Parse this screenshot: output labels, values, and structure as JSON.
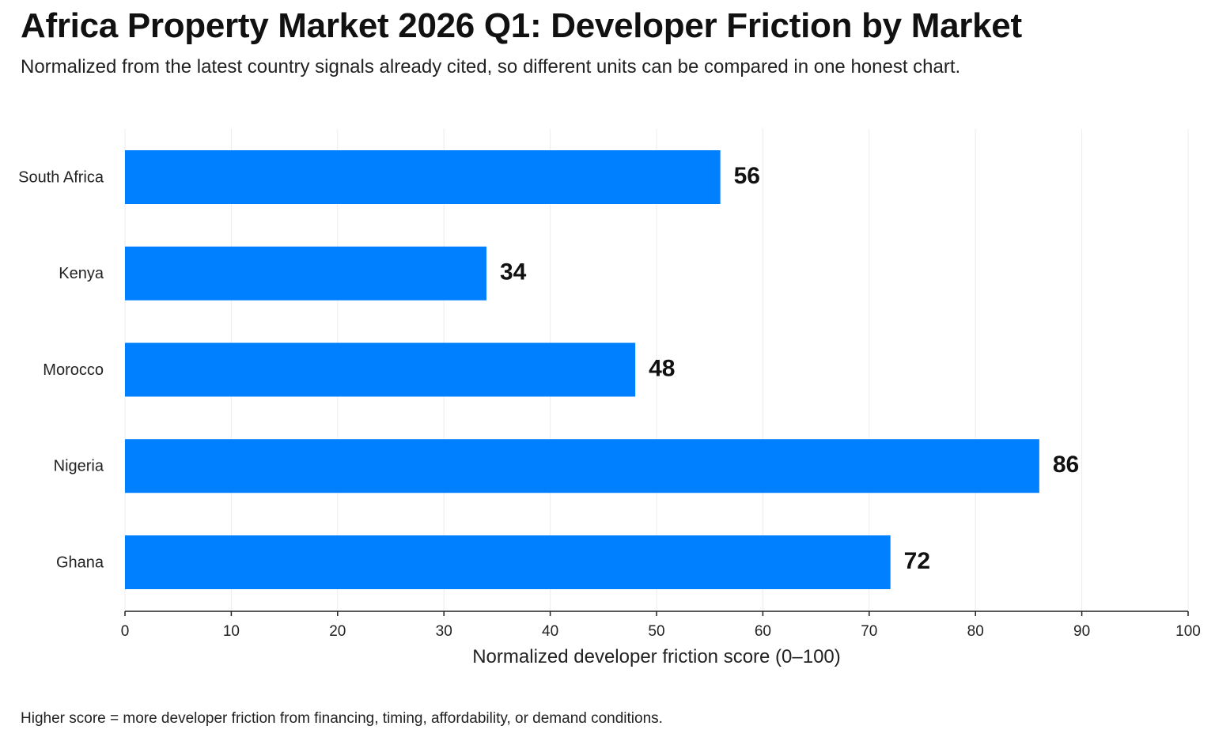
{
  "header": {
    "title": "Africa Property Market 2026 Q1: Developer Friction by Market",
    "subtitle": "Normalized from the latest country signals already cited, so different units can be compared in one honest chart."
  },
  "footnote": "Higher score = more developer friction from financing, timing, affordability, or demand conditions.",
  "chart_data": {
    "type": "bar",
    "orientation": "horizontal",
    "categories": [
      "South Africa",
      "Kenya",
      "Morocco",
      "Nigeria",
      "Ghana"
    ],
    "values": [
      56,
      34,
      48,
      86,
      72
    ],
    "data_labels": [
      "56",
      "34",
      "48",
      "86",
      "72"
    ],
    "xlabel": "Normalized developer friction score (0–100)",
    "xlim": [
      0,
      100
    ],
    "xticks": [
      0,
      10,
      20,
      30,
      40,
      50,
      60,
      70,
      80,
      90,
      100
    ],
    "grid": true,
    "legend": "none",
    "bar_color": "#007fff"
  }
}
